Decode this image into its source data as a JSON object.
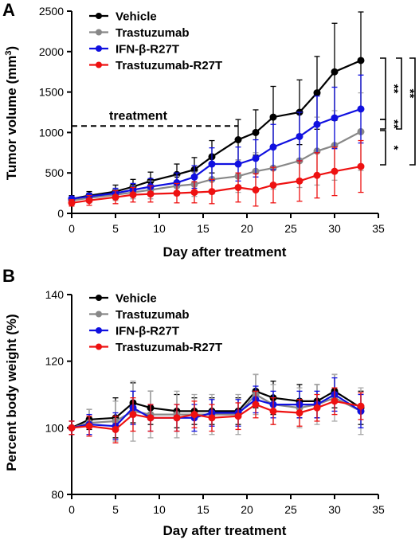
{
  "colors": {
    "Vehicle": "#000000",
    "Trastuzumab": "#888888",
    "IFN-β-R27T": "#1010e0",
    "Trastuzumab-R27T": "#ee1111"
  },
  "chart_data": [
    {
      "type": "line",
      "panel": "A",
      "xlabel": "Day after treatment",
      "ylabel": "Tumor volume (mm3)",
      "xlim": [
        0,
        35
      ],
      "ylim": [
        0,
        2500
      ],
      "xticks": [
        0,
        5,
        10,
        15,
        20,
        25,
        30,
        35
      ],
      "yticks": [
        0,
        500,
        1000,
        1500,
        2000,
        2500
      ],
      "legend": "top-left",
      "annotation": {
        "text": "treatment",
        "x_range": [
          0,
          19
        ],
        "y": 1080
      },
      "significance": [
        {
          "label": "**",
          "from": "Vehicle",
          "to": "IFN-β-R27T"
        },
        {
          "label": "**",
          "from": "Vehicle",
          "to": "Trastuzumab"
        },
        {
          "label": "**",
          "from": "Vehicle",
          "to": "Trastuzumab-R27T"
        },
        {
          "label": "**",
          "from": "IFN-β-R27T",
          "to": "Trastuzumab"
        },
        {
          "label": "*",
          "from": "Trastuzumab",
          "to": "Trastuzumab-R27T"
        }
      ],
      "x": [
        0,
        2,
        5,
        7,
        9,
        12,
        14,
        16,
        19,
        21,
        23,
        26,
        28,
        30,
        33
      ],
      "series": [
        {
          "name": "Vehicle",
          "values": [
            180,
            220,
            270,
            330,
            400,
            480,
            540,
            700,
            910,
            1000,
            1190,
            1250,
            1490,
            1750,
            1890
          ],
          "errors": [
            40,
            50,
            80,
            90,
            110,
            130,
            150,
            200,
            250,
            280,
            380,
            400,
            450,
            600,
            600
          ]
        },
        {
          "name": "Trastuzumab",
          "values": [
            160,
            190,
            230,
            260,
            290,
            340,
            360,
            420,
            460,
            520,
            560,
            650,
            770,
            840,
            1010
          ],
          "errors": [
            40,
            60,
            70,
            80,
            110,
            120,
            150,
            180,
            200,
            230,
            260,
            330,
            420,
            430,
            480
          ]
        },
        {
          "name": "IFN-β-R27T",
          "values": [
            180,
            210,
            250,
            290,
            330,
            380,
            450,
            610,
            610,
            680,
            820,
            950,
            1100,
            1180,
            1290
          ],
          "errors": [
            30,
            40,
            60,
            80,
            100,
            120,
            140,
            200,
            210,
            230,
            280,
            300,
            350,
            380,
            420
          ]
        },
        {
          "name": "Trastuzumab-R27T",
          "values": [
            130,
            160,
            200,
            230,
            240,
            250,
            260,
            270,
            320,
            290,
            350,
            400,
            470,
            520,
            580
          ],
          "errors": [
            40,
            60,
            80,
            90,
            100,
            120,
            130,
            150,
            180,
            200,
            220,
            250,
            280,
            300,
            320
          ]
        }
      ]
    },
    {
      "type": "line",
      "panel": "B",
      "xlabel": "Day after treatment",
      "ylabel": "Percent body weight (%)",
      "xlim": [
        0,
        35
      ],
      "ylim": [
        80,
        140
      ],
      "xticks": [
        0,
        5,
        10,
        15,
        20,
        25,
        30,
        35
      ],
      "yticks": [
        80,
        100,
        120,
        140
      ],
      "legend": "top-left",
      "x": [
        0,
        2,
        5,
        7,
        9,
        12,
        14,
        16,
        19,
        21,
        23,
        26,
        28,
        30,
        33
      ],
      "series": [
        {
          "name": "Vehicle",
          "values": [
            100,
            102.5,
            103,
            107.5,
            106,
            105,
            105,
            105,
            105,
            111,
            109,
            108,
            108,
            111,
            106
          ],
          "errors": [
            2,
            3,
            6,
            6,
            5,
            5,
            4,
            4,
            4,
            5,
            5,
            5,
            5,
            5,
            5
          ]
        },
        {
          "name": "Trastuzumab",
          "values": [
            100,
            101.5,
            102,
            105,
            104,
            104,
            104,
            104,
            104,
            110,
            107,
            106,
            107,
            109,
            105
          ],
          "errors": [
            2,
            4,
            6,
            9,
            7,
            7,
            6,
            6,
            6,
            6,
            6,
            6,
            6,
            7,
            7
          ]
        },
        {
          "name": "IFN-β-R27T",
          "values": [
            100,
            101,
            100.5,
            106,
            103,
            103,
            103,
            104.5,
            104.5,
            108.5,
            107,
            107,
            107,
            110,
            105
          ],
          "errors": [
            2,
            3,
            4,
            5,
            4,
            4,
            4,
            4,
            4,
            4,
            4,
            4,
            4,
            5,
            5
          ]
        },
        {
          "name": "Trastuzumab-R27T",
          "values": [
            100,
            100.5,
            99.5,
            104,
            103,
            103,
            104,
            103,
            103.5,
            107,
            105,
            104.5,
            106,
            108,
            106.5
          ],
          "errors": [
            2,
            3,
            4,
            5,
            4,
            4,
            4,
            4,
            4,
            4,
            4,
            4,
            4,
            4,
            4
          ]
        }
      ]
    }
  ]
}
